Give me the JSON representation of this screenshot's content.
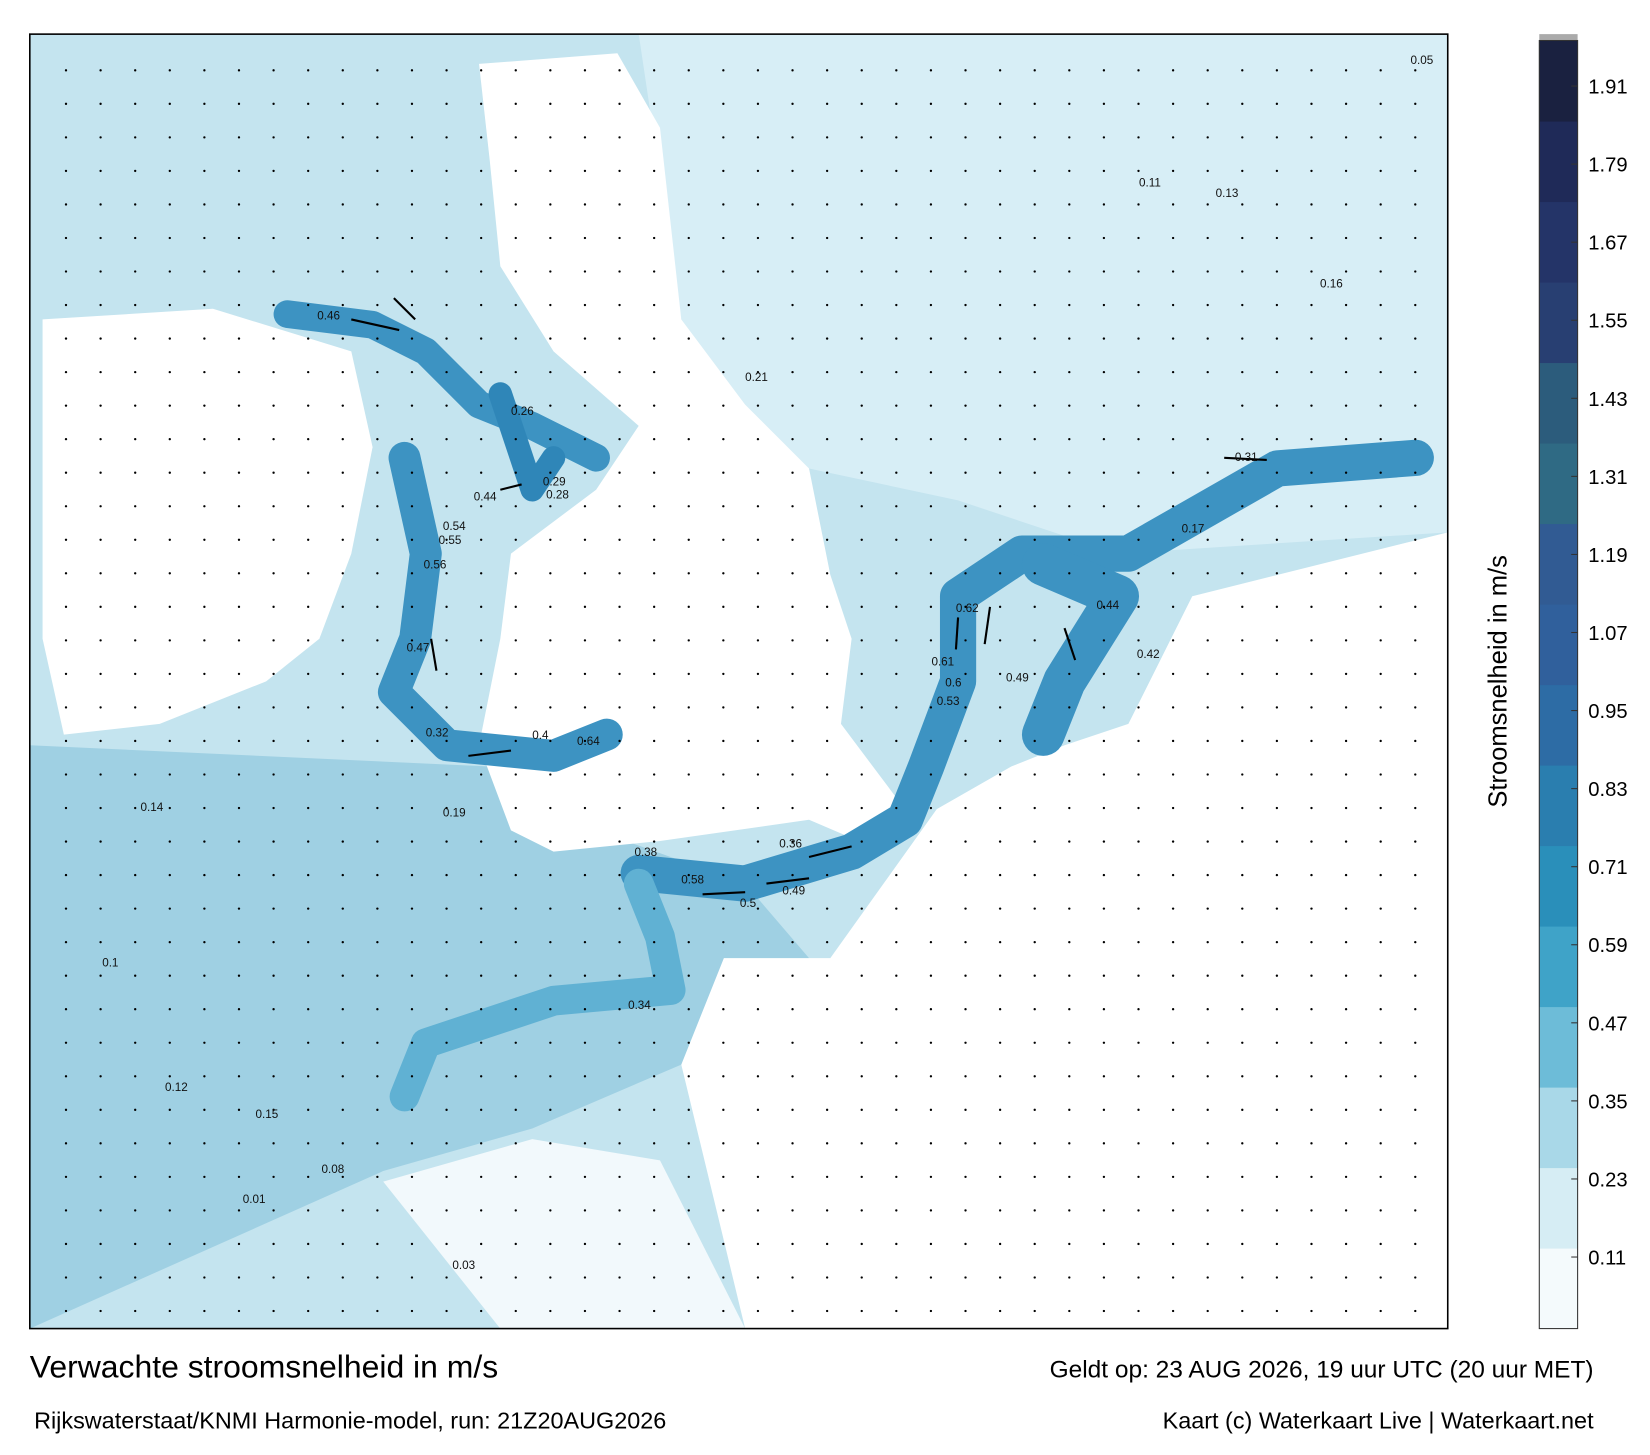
{
  "title": "Verwachte stroomsnelheid in m/s",
  "valid_time": "Geldt op: 23 AUG 2026, 19 uur UTC (20 uur MET)",
  "model": "Rijkswaterstaat/KNMI Harmonie-model, run: 21Z20AUG2026",
  "credit": "Kaart (c) Waterkaart Live | Waterkaart.net",
  "colorbar": {
    "label": "Stroomsnelheid in m/s",
    "clim": [
      0,
      1.98
    ],
    "ticks": [
      0.11,
      0.23,
      0.35,
      0.47,
      0.59,
      0.71,
      0.83,
      0.95,
      1.07,
      1.19,
      1.31,
      1.43,
      1.55,
      1.67,
      1.79,
      1.91
    ],
    "colors": [
      "#f4fafc",
      "#d6edf4",
      "#a9d8e8",
      "#6dbcd8",
      "#3fa3c8",
      "#2a8fba",
      "#2a7eaf",
      "#2d6ca5",
      "#30609c",
      "#315b93",
      "#2f6a84",
      "#2c5c7c",
      "#283f72",
      "#243468",
      "#1f2a58",
      "#1a2140"
    ]
  },
  "speed_labels": [
    "0.46",
    "0.62",
    "0.6",
    "0.61",
    "0.53",
    "0.49",
    "0.5",
    "0.44",
    "0.47",
    "0.56",
    "0.54",
    "0.55",
    "0.49",
    "0.42",
    "0.38",
    "0.36",
    "0.34",
    "0.32",
    "0.29",
    "0.26",
    "0.21",
    "0.17",
    "0.15",
    "0.12",
    "0.1",
    "0.08",
    "0.05",
    "0.03",
    "0.01",
    "0.64",
    "0.58",
    "0.44",
    "0.4",
    "0.31",
    "0.28",
    "0.19",
    "0.16",
    "0.14",
    "0.13",
    "0.11"
  ]
}
